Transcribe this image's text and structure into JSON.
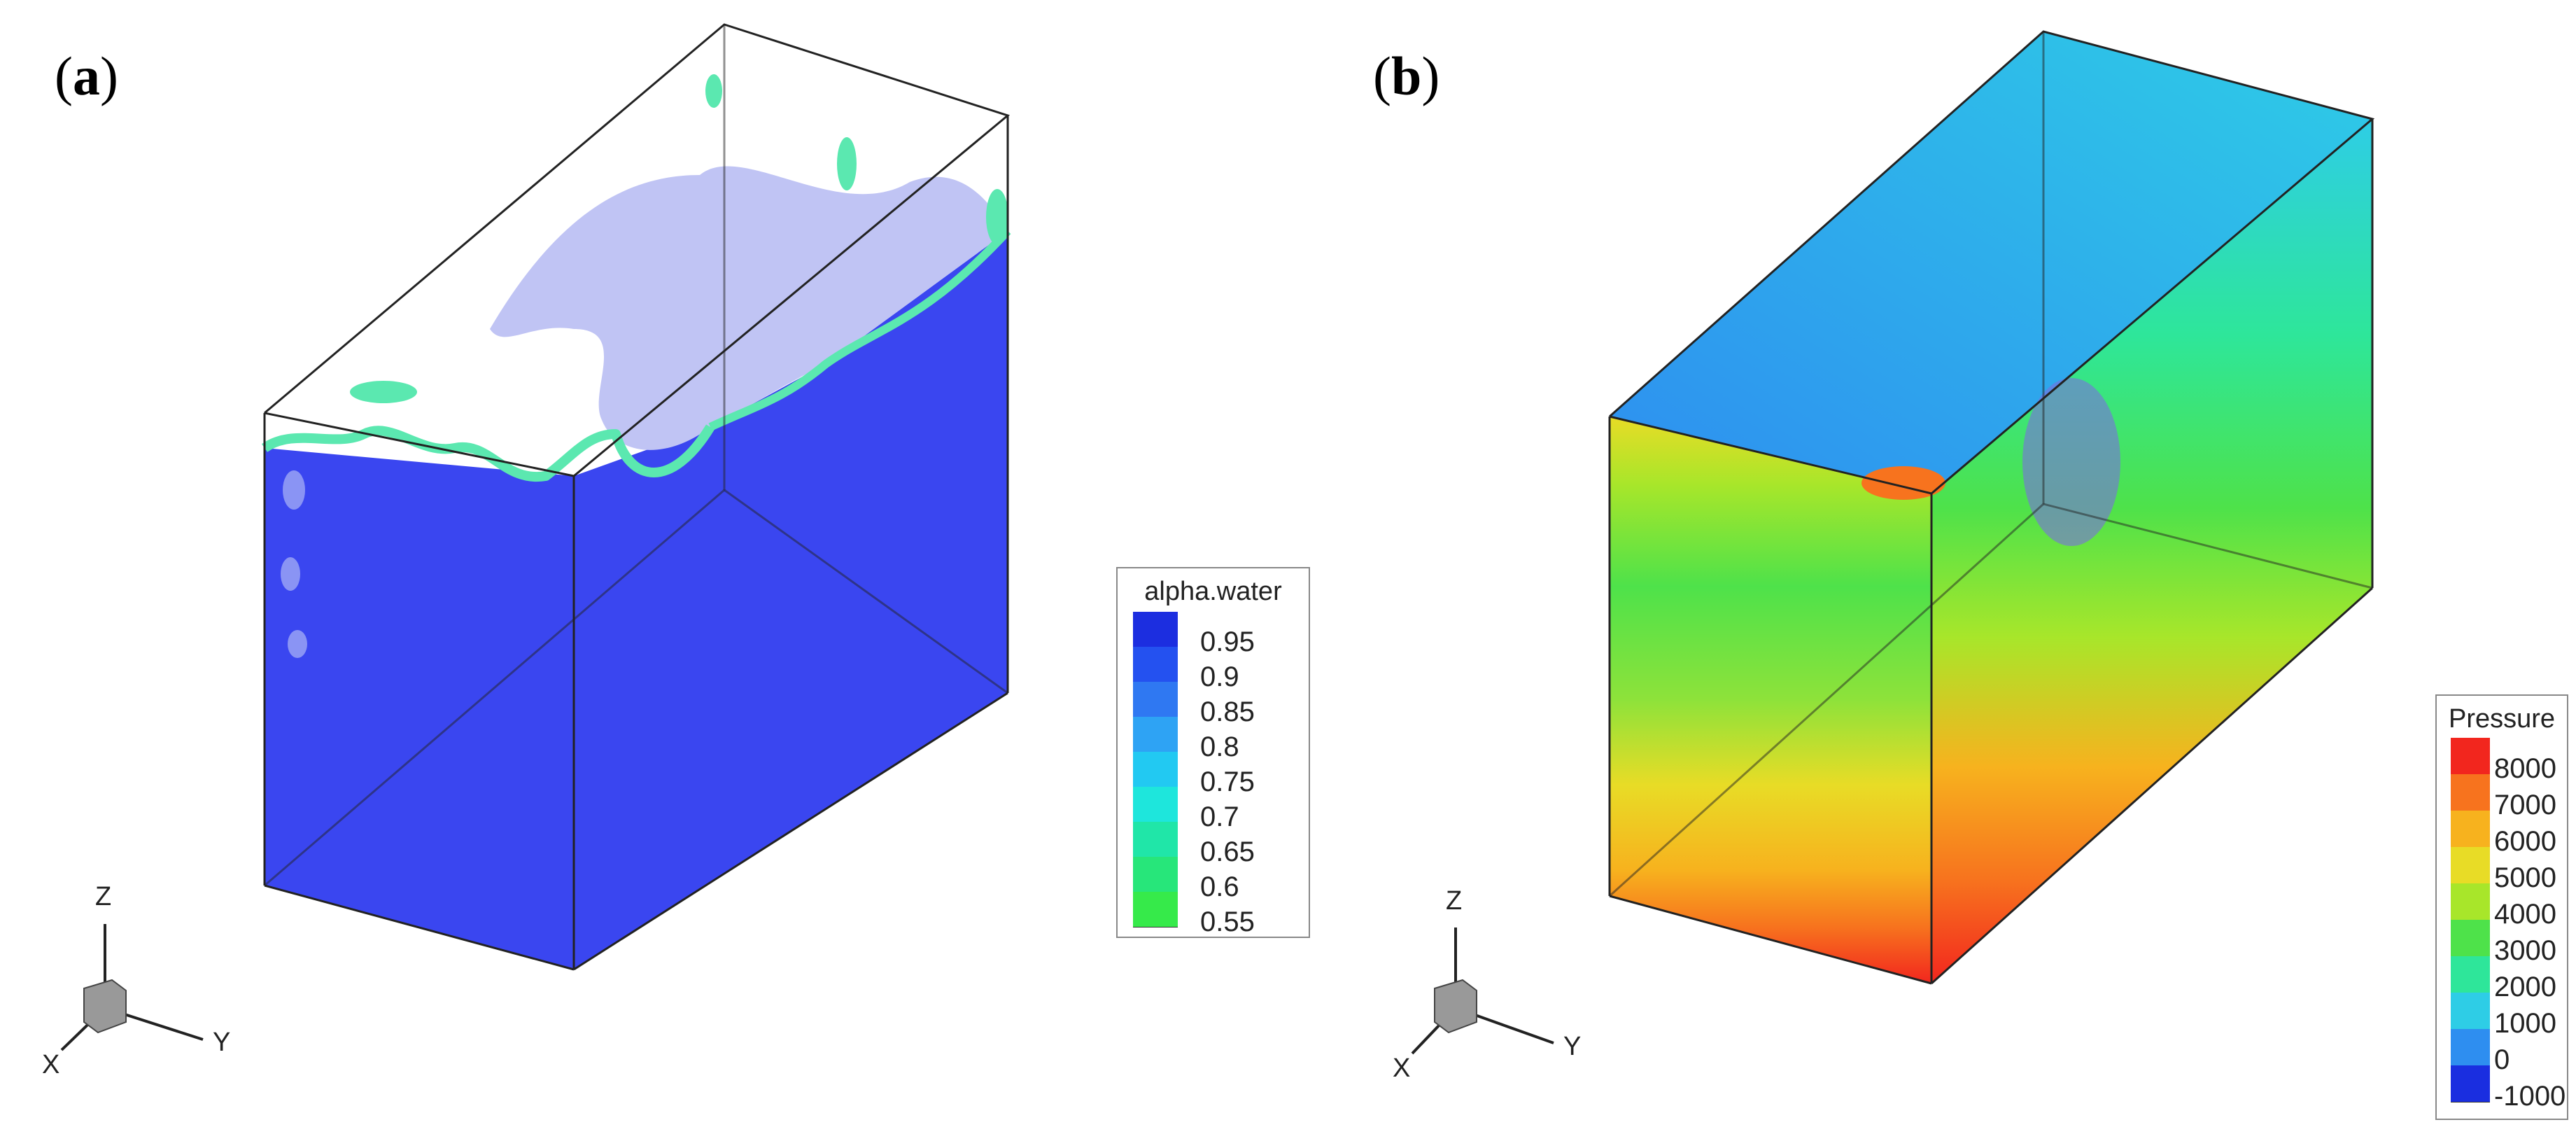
{
  "panels": [
    {
      "label_open": "(",
      "label_letter": "a",
      "label_close": ")",
      "legend": {
        "title": "alpha.water",
        "entries": [
          "0.95",
          "0.9",
          "0.85",
          "0.8",
          "0.75",
          "0.7",
          "0.65",
          "0.6",
          "0.55"
        ],
        "colors": [
          "#1c2ee0",
          "#2451f0",
          "#2f78f2",
          "#2ea3f4",
          "#22c9f2",
          "#1ee6dc",
          "#20e6a8",
          "#27e67a",
          "#36ea4a"
        ]
      },
      "axes": {
        "z": "Z",
        "x": "X",
        "y": "Y"
      }
    },
    {
      "label_open": "(",
      "label_letter": "b",
      "label_close": ")",
      "legend": {
        "title": "Pressure",
        "entries": [
          "8000",
          "7000",
          "6000",
          "5000",
          "4000",
          "3000",
          "2000",
          "1000",
          "0",
          "-1000"
        ],
        "colors": [
          "#f2261e",
          "#f7731e",
          "#f7b21e",
          "#e8dc26",
          "#a8e62a",
          "#4ee24a",
          "#2ee69a",
          "#2ecde6",
          "#2e8ef0",
          "#1a2ee0"
        ]
      },
      "axes": {
        "z": "Z",
        "x": "X",
        "y": "Y"
      }
    }
  ],
  "colors": {
    "water_blue": "#3a46f0",
    "air_lavender": "#c0c4f4",
    "interface_green": "#5be8b0",
    "frame_stroke": "#222222"
  }
}
